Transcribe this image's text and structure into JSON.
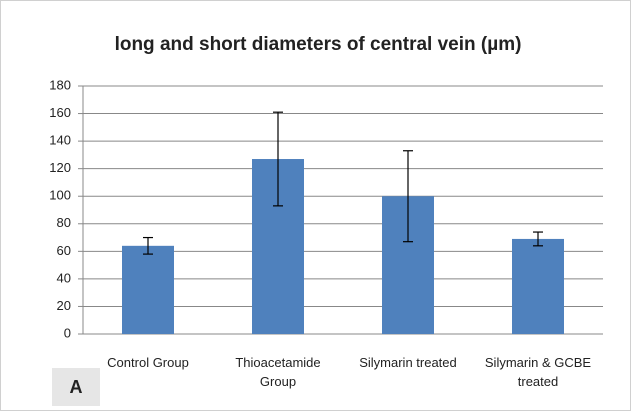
{
  "chart_data": {
    "type": "bar",
    "title": "long and short diameters of central vein (µm)",
    "categories": [
      "Control Group",
      "Thioacetamide Group",
      "Silymarin treated",
      "Silymarin & GCBE treated"
    ],
    "values": [
      64,
      127,
      100,
      69
    ],
    "errors": [
      6,
      34,
      33,
      5
    ],
    "color": "#4f81bd",
    "ylim": [
      0,
      180
    ],
    "yticks": [
      0,
      20,
      40,
      60,
      80,
      100,
      120,
      140,
      160,
      180
    ],
    "grid": true,
    "panel_label": "A"
  }
}
